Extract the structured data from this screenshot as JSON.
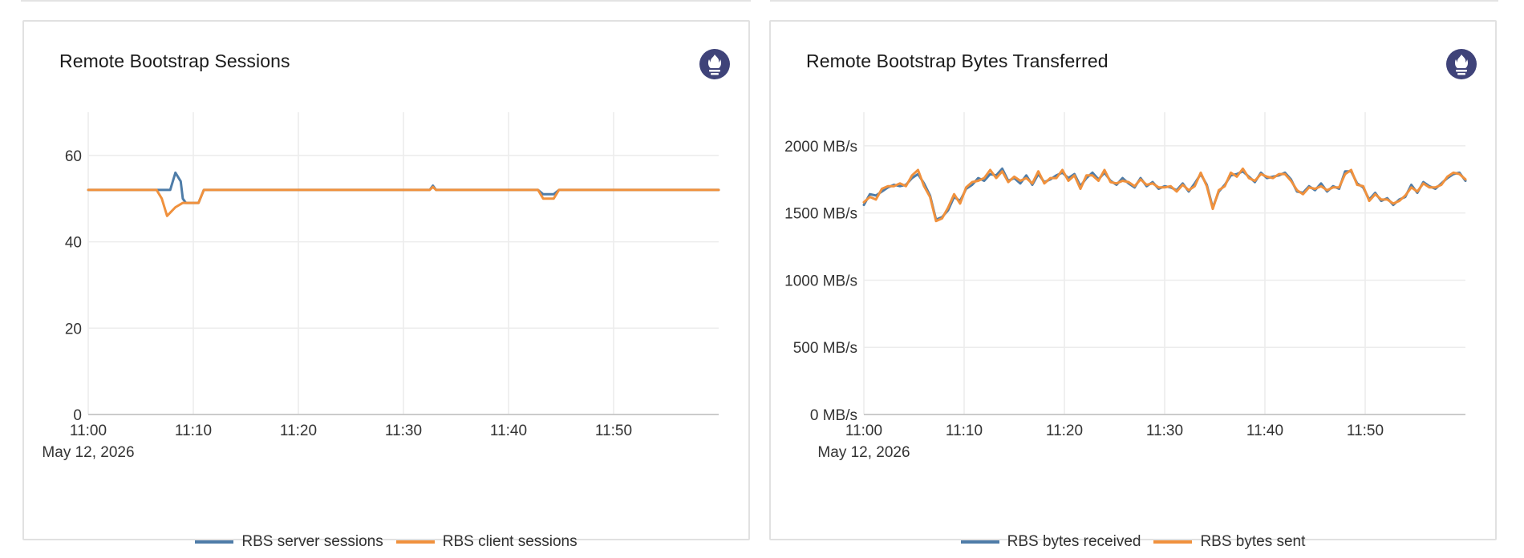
{
  "colors": {
    "server": "#4e7ca8",
    "client": "#f0913d",
    "icon_bg": "#3f4379",
    "grid": "#ececec"
  },
  "panels": [
    {
      "title": "Remote Bootstrap Sessions",
      "icon": "prometheus-icon"
    },
    {
      "title": "Remote Bootstrap Bytes Transferred",
      "icon": "prometheus-icon"
    }
  ],
  "chart_data": [
    {
      "type": "line",
      "title": "Remote Bootstrap Sessions",
      "xlabel": "",
      "ylabel": "",
      "x_ticks": [
        "11:00",
        "11:10",
        "11:20",
        "11:30",
        "11:40",
        "11:50"
      ],
      "x_date_label": "May 12, 2026",
      "x_range_minutes": [
        0,
        60
      ],
      "ylim": [
        0,
        70
      ],
      "y_ticks": [
        0,
        20,
        40,
        60
      ],
      "y_tick_labels": [
        "0",
        "20",
        "40",
        "60"
      ],
      "grid": true,
      "legend": "bottom-center",
      "series": [
        {
          "name": "RBS server sessions",
          "color": "#4e7ca8",
          "x": [
            0,
            7.3,
            7.8,
            8.3,
            8.8,
            9.0,
            9.3,
            10.5,
            11.0,
            32.5,
            32.8,
            33.1,
            42.8,
            43.3,
            44.3,
            44.8,
            60
          ],
          "y": [
            52,
            52,
            52,
            56,
            54,
            50,
            49,
            49,
            52,
            52,
            53,
            52,
            52,
            51,
            51,
            52,
            52
          ]
        },
        {
          "name": "RBS client sessions",
          "color": "#f0913d",
          "x": [
            0,
            6.5,
            7.0,
            7.5,
            8.3,
            9.0,
            10.5,
            11.0,
            32.5,
            32.8,
            33.1,
            42.8,
            43.3,
            44.3,
            44.8,
            60
          ],
          "y": [
            52,
            52,
            50,
            46,
            48,
            49,
            49,
            52,
            52,
            52.7,
            52,
            52,
            50,
            50,
            52,
            52
          ]
        }
      ]
    },
    {
      "type": "line",
      "title": "Remote Bootstrap Bytes Transferred",
      "xlabel": "",
      "ylabel": "",
      "x_ticks": [
        "11:00",
        "11:10",
        "11:20",
        "11:30",
        "11:40",
        "11:50"
      ],
      "x_date_label": "May 12, 2026",
      "x_range_minutes": [
        0,
        60
      ],
      "ylim": [
        0,
        2250
      ],
      "y_ticks": [
        0,
        500,
        1000,
        1500,
        2000
      ],
      "y_tick_labels": [
        "0 MB/s",
        "500 MB/s",
        "1000 MB/s",
        "1500 MB/s",
        "2000 MB/s"
      ],
      "grid": true,
      "legend": "bottom-center",
      "series": [
        {
          "name": "RBS bytes received",
          "color": "#4e7ca8",
          "x": [
            0,
            0.6,
            1.2,
            1.8,
            2.4,
            3.0,
            3.6,
            4.2,
            4.8,
            5.4,
            6.0,
            6.6,
            7.2,
            7.8,
            8.4,
            9.0,
            9.6,
            10.2,
            10.8,
            11.4,
            12.0,
            12.6,
            13.2,
            13.8,
            14.4,
            15.0,
            15.6,
            16.2,
            16.8,
            17.4,
            18.0,
            18.6,
            19.2,
            19.8,
            20.4,
            21.0,
            21.6,
            22.2,
            22.8,
            23.4,
            24.0,
            24.6,
            25.2,
            25.8,
            26.4,
            27.0,
            27.6,
            28.2,
            28.8,
            29.4,
            30.0,
            30.6,
            31.2,
            31.8,
            32.4,
            33.0,
            33.6,
            34.2,
            34.8,
            35.4,
            36.0,
            36.6,
            37.2,
            37.8,
            38.4,
            39.0,
            39.6,
            40.2,
            40.8,
            41.4,
            42.0,
            42.6,
            43.2,
            43.8,
            44.4,
            45.0,
            45.6,
            46.2,
            46.8,
            47.4,
            48.0,
            48.6,
            49.2,
            49.8,
            50.4,
            51.0,
            51.6,
            52.2,
            52.8,
            53.4,
            54.0,
            54.6,
            55.2,
            55.8,
            56.4,
            57.0,
            57.6,
            58.2,
            58.8,
            59.4,
            60.0
          ],
          "y": [
            1560,
            1640,
            1630,
            1660,
            1690,
            1710,
            1700,
            1710,
            1760,
            1790,
            1720,
            1630,
            1450,
            1470,
            1520,
            1620,
            1590,
            1680,
            1710,
            1760,
            1740,
            1790,
            1780,
            1830,
            1740,
            1760,
            1720,
            1780,
            1710,
            1790,
            1730,
            1750,
            1780,
            1800,
            1760,
            1790,
            1700,
            1760,
            1800,
            1750,
            1800,
            1740,
            1710,
            1760,
            1720,
            1690,
            1760,
            1700,
            1730,
            1680,
            1700,
            1690,
            1670,
            1720,
            1660,
            1720,
            1790,
            1710,
            1540,
            1660,
            1710,
            1780,
            1790,
            1810,
            1770,
            1730,
            1800,
            1760,
            1770,
            1780,
            1800,
            1750,
            1660,
            1650,
            1700,
            1670,
            1720,
            1660,
            1700,
            1680,
            1810,
            1810,
            1720,
            1690,
            1600,
            1650,
            1590,
            1610,
            1560,
            1600,
            1620,
            1710,
            1650,
            1730,
            1700,
            1680,
            1720,
            1760,
            1790,
            1800,
            1740
          ]
        },
        {
          "name": "RBS bytes sent",
          "color": "#f0913d",
          "x": [
            0,
            0.6,
            1.2,
            1.8,
            2.4,
            3.0,
            3.6,
            4.2,
            4.8,
            5.4,
            6.0,
            6.6,
            7.2,
            7.8,
            8.4,
            9.0,
            9.6,
            10.2,
            10.8,
            11.4,
            12.0,
            12.6,
            13.2,
            13.8,
            14.4,
            15.0,
            15.6,
            16.2,
            16.8,
            17.4,
            18.0,
            18.6,
            19.2,
            19.8,
            20.4,
            21.0,
            21.6,
            22.2,
            22.8,
            23.4,
            24.0,
            24.6,
            25.2,
            25.8,
            26.4,
            27.0,
            27.6,
            28.2,
            28.8,
            29.4,
            30.0,
            30.6,
            31.2,
            31.8,
            32.4,
            33.0,
            33.6,
            34.2,
            34.8,
            35.4,
            36.0,
            36.6,
            37.2,
            37.8,
            38.4,
            39.0,
            39.6,
            40.2,
            40.8,
            41.4,
            42.0,
            42.6,
            43.2,
            43.8,
            44.4,
            45.0,
            45.6,
            46.2,
            46.8,
            47.4,
            48.0,
            48.6,
            49.2,
            49.8,
            50.4,
            51.0,
            51.6,
            52.2,
            52.8,
            53.4,
            54.0,
            54.6,
            55.2,
            55.8,
            56.4,
            57.0,
            57.6,
            58.2,
            58.8,
            59.4,
            60.0
          ],
          "y": [
            1580,
            1620,
            1600,
            1680,
            1700,
            1700,
            1720,
            1700,
            1780,
            1820,
            1700,
            1620,
            1440,
            1460,
            1540,
            1640,
            1570,
            1690,
            1730,
            1740,
            1760,
            1820,
            1760,
            1810,
            1730,
            1770,
            1740,
            1760,
            1720,
            1810,
            1720,
            1760,
            1760,
            1820,
            1740,
            1780,
            1680,
            1780,
            1780,
            1740,
            1820,
            1730,
            1720,
            1740,
            1730,
            1700,
            1750,
            1710,
            1720,
            1690,
            1690,
            1700,
            1660,
            1710,
            1670,
            1700,
            1800,
            1700,
            1530,
            1670,
            1700,
            1800,
            1770,
            1830,
            1760,
            1740,
            1790,
            1770,
            1760,
            1790,
            1790,
            1740,
            1670,
            1640,
            1690,
            1680,
            1700,
            1670,
            1690,
            1690,
            1790,
            1820,
            1710,
            1700,
            1590,
            1640,
            1600,
            1600,
            1570,
            1590,
            1630,
            1690,
            1660,
            1720,
            1690,
            1690,
            1710,
            1770,
            1800,
            1790,
            1750
          ]
        }
      ]
    }
  ],
  "legends": [
    [
      {
        "label": "RBS server sessions",
        "color": "#4e7ca8"
      },
      {
        "label": "RBS client sessions",
        "color": "#f0913d"
      }
    ],
    [
      {
        "label": "RBS bytes received",
        "color": "#4e7ca8"
      },
      {
        "label": "RBS bytes sent",
        "color": "#f0913d"
      }
    ]
  ]
}
